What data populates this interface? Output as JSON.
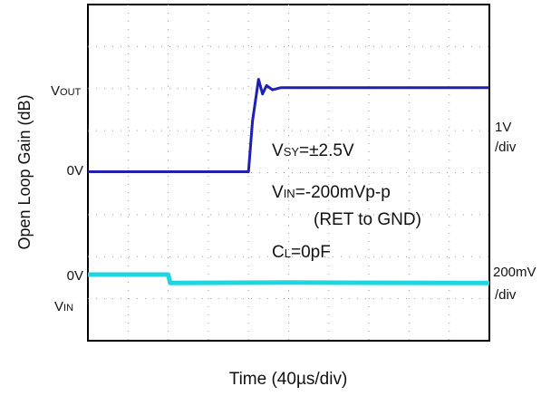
{
  "chart_data": {
    "type": "line",
    "title": "",
    "xlabel": "Time (40µs/div)",
    "ylabel": "Open Loop Gain (dB)",
    "grid": true,
    "x_divisions": 10,
    "y_divisions": 8,
    "series": [
      {
        "name": "VOUT",
        "color": "#1f1fb4",
        "scale": "1V/div",
        "x": [
          0,
          4.0,
          4.1,
          4.25,
          4.35,
          4.45,
          4.6,
          4.8,
          5.0,
          6.0,
          10
        ],
        "y": [
          0,
          0,
          1.2,
          2.2,
          1.85,
          2.05,
          1.95,
          2.0,
          2.0,
          2.0,
          2.0
        ]
      },
      {
        "name": "VIN",
        "color": "#1fd6e0",
        "scale": "200mV/div",
        "x": [
          0,
          2.0,
          2.05,
          5.0,
          10
        ],
        "y": [
          0,
          0,
          -0.2,
          -0.19,
          -0.2
        ]
      }
    ],
    "annotations": {
      "vout_label": "V",
      "vout_sub": "OUT",
      "zero_top": "0V",
      "zero_bottom": "0V",
      "vin_label": "V",
      "vin_sub": "IN",
      "scale_top_1": "1V",
      "scale_top_2": "/div",
      "scale_bottom_1": "200mV",
      "scale_bottom_2": "/div",
      "cond1_a": "V",
      "cond1_sub": "SY",
      "cond1_b": "=±2.5V",
      "cond2_a": "V",
      "cond2_sub": "IN",
      "cond2_b": "=-200mVp-p",
      "cond3": "(RET to GND)",
      "cond4_a": "C",
      "cond4_sub": "L",
      "cond4_b": "=0pF"
    }
  }
}
